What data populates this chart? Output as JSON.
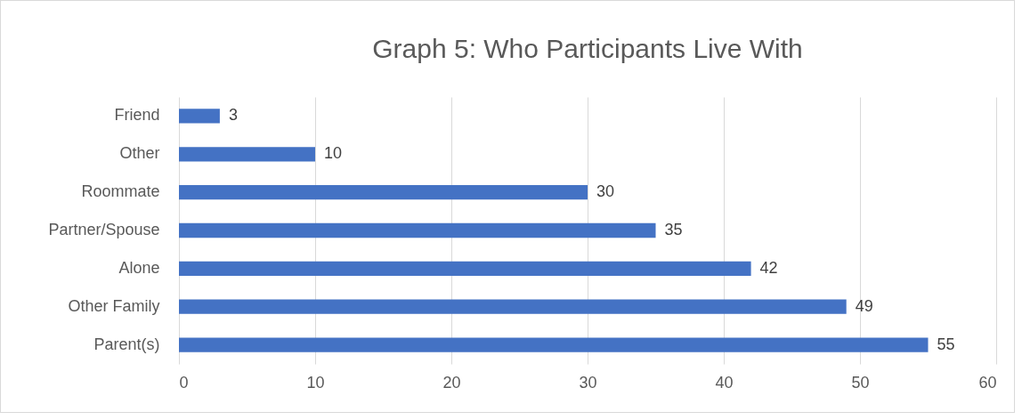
{
  "chart_data": {
    "type": "bar",
    "orientation": "horizontal",
    "title": "Graph 5: Who Participants Live With",
    "categories": [
      "Friend",
      "Other",
      "Roommate",
      "Partner/Spouse",
      "Alone",
      "Other Family",
      "Parent(s)"
    ],
    "values": [
      3,
      10,
      30,
      35,
      42,
      49,
      55
    ],
    "color": "#4472c4",
    "xlim": [
      0,
      60
    ],
    "xticks": [
      0,
      10,
      20,
      30,
      40,
      50,
      60
    ],
    "grid": "x",
    "data_labels": true
  }
}
